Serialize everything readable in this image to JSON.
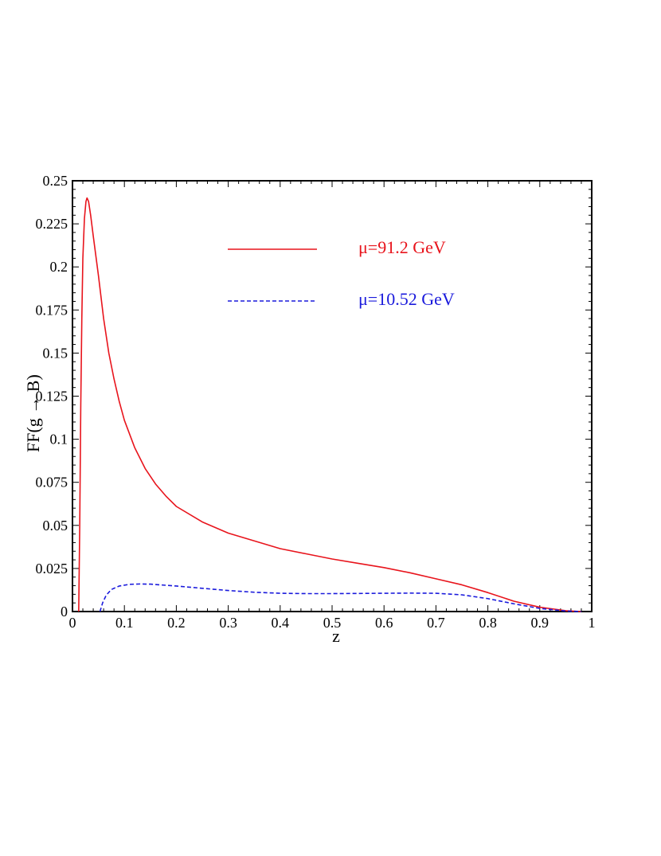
{
  "chart_data": {
    "type": "line",
    "xlabel": "z",
    "ylabel": "FF(g → B)",
    "xlim": [
      0,
      1
    ],
    "ylim": [
      0,
      0.25
    ],
    "x_ticks": [
      0,
      0.1,
      0.2,
      0.3,
      0.4,
      0.5,
      0.6,
      0.7,
      0.8,
      0.9,
      1
    ],
    "x_tick_labels": [
      "0",
      "0.1",
      "0.2",
      "0.3",
      "0.4",
      "0.5",
      "0.6",
      "0.7",
      "0.8",
      "0.9",
      "1"
    ],
    "y_ticks": [
      0,
      0.025,
      0.05,
      0.075,
      0.1,
      0.125,
      0.15,
      0.175,
      0.2,
      0.225,
      0.25
    ],
    "y_tick_labels": [
      "0",
      "0.025",
      "0.05",
      "0.075",
      "0.1",
      "0.125",
      "0.15",
      "0.175",
      "0.2",
      "0.225",
      "0.25"
    ],
    "grid": false,
    "legend_position": "top-right",
    "series": [
      {
        "name": "μ=91.2 GeV",
        "color": "#e8141c",
        "style": "solid",
        "points": [
          [
            0.012,
            0
          ],
          [
            0.014,
            0.05
          ],
          [
            0.016,
            0.12
          ],
          [
            0.018,
            0.17
          ],
          [
            0.02,
            0.205
          ],
          [
            0.023,
            0.228
          ],
          [
            0.026,
            0.238
          ],
          [
            0.028,
            0.24
          ],
          [
            0.031,
            0.238
          ],
          [
            0.035,
            0.23
          ],
          [
            0.04,
            0.218
          ],
          [
            0.05,
            0.195
          ],
          [
            0.06,
            0.17
          ],
          [
            0.07,
            0.15
          ],
          [
            0.08,
            0.135
          ],
          [
            0.09,
            0.122
          ],
          [
            0.1,
            0.111
          ],
          [
            0.12,
            0.095
          ],
          [
            0.14,
            0.083
          ],
          [
            0.16,
            0.074
          ],
          [
            0.18,
            0.067
          ],
          [
            0.2,
            0.061
          ],
          [
            0.25,
            0.052
          ],
          [
            0.3,
            0.0455
          ],
          [
            0.35,
            0.041
          ],
          [
            0.4,
            0.0365
          ],
          [
            0.45,
            0.0335
          ],
          [
            0.5,
            0.0305
          ],
          [
            0.55,
            0.028
          ],
          [
            0.6,
            0.0255
          ],
          [
            0.65,
            0.0225
          ],
          [
            0.7,
            0.019
          ],
          [
            0.75,
            0.0155
          ],
          [
            0.8,
            0.011
          ],
          [
            0.85,
            0.006
          ],
          [
            0.9,
            0.0025
          ],
          [
            0.95,
            0.0005
          ],
          [
            0.98,
            0
          ]
        ]
      },
      {
        "name": "μ=10.52 GeV",
        "color": "#1a1adc",
        "style": "dashed",
        "points": [
          [
            0.053,
            0
          ],
          [
            0.058,
            0.005
          ],
          [
            0.065,
            0.0095
          ],
          [
            0.075,
            0.0128
          ],
          [
            0.09,
            0.0148
          ],
          [
            0.11,
            0.0158
          ],
          [
            0.13,
            0.016
          ],
          [
            0.15,
            0.0159
          ],
          [
            0.2,
            0.0148
          ],
          [
            0.25,
            0.0135
          ],
          [
            0.3,
            0.0122
          ],
          [
            0.35,
            0.0112
          ],
          [
            0.4,
            0.0106
          ],
          [
            0.45,
            0.0104
          ],
          [
            0.5,
            0.0104
          ],
          [
            0.55,
            0.0105
          ],
          [
            0.6,
            0.0106
          ],
          [
            0.65,
            0.0107
          ],
          [
            0.7,
            0.0106
          ],
          [
            0.75,
            0.0097
          ],
          [
            0.8,
            0.0075
          ],
          [
            0.85,
            0.0045
          ],
          [
            0.9,
            0.0018
          ],
          [
            0.95,
            0.0003
          ],
          [
            0.98,
            0
          ]
        ]
      }
    ]
  }
}
